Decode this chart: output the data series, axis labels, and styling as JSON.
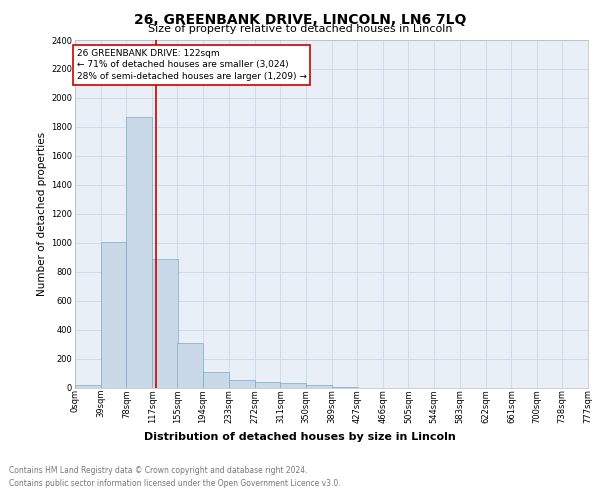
{
  "title": "26, GREENBANK DRIVE, LINCOLN, LN6 7LQ",
  "subtitle": "Size of property relative to detached houses in Lincoln",
  "xlabel": "Distribution of detached houses by size in Lincoln",
  "ylabel": "Number of detached properties",
  "footer_line1": "Contains HM Land Registry data © Crown copyright and database right 2024.",
  "footer_line2": "Contains public sector information licensed under the Open Government Licence v3.0.",
  "bin_labels": [
    "0sqm",
    "39sqm",
    "78sqm",
    "117sqm",
    "155sqm",
    "194sqm",
    "233sqm",
    "272sqm",
    "311sqm",
    "350sqm",
    "389sqm",
    "427sqm",
    "466sqm",
    "505sqm",
    "544sqm",
    "583sqm",
    "622sqm",
    "661sqm",
    "700sqm",
    "738sqm",
    "777sqm"
  ],
  "bin_edges": [
    0,
    39,
    78,
    117,
    155,
    194,
    233,
    272,
    311,
    350,
    389,
    427,
    466,
    505,
    544,
    583,
    622,
    661,
    700,
    738,
    777
  ],
  "bar_heights": [
    20,
    1005,
    1870,
    890,
    305,
    105,
    50,
    40,
    30,
    15,
    5,
    0,
    0,
    0,
    0,
    0,
    0,
    0,
    0,
    0
  ],
  "bar_color": "#c9d9e8",
  "bar_edge_color": "#7aaac8",
  "property_size": 122,
  "property_line_color": "#cc0000",
  "annotation_line1": "26 GREENBANK DRIVE: 122sqm",
  "annotation_line2": "← 71% of detached houses are smaller (3,024)",
  "annotation_line3": "28% of semi-detached houses are larger (1,209) →",
  "annotation_box_color": "#cc0000",
  "ylim_max": 2400,
  "yticks": [
    0,
    200,
    400,
    600,
    800,
    1000,
    1200,
    1400,
    1600,
    1800,
    2000,
    2200,
    2400
  ],
  "grid_color": "#c8d8e8",
  "background_color": "#e8eff7",
  "title_fontsize": 10,
  "subtitle_fontsize": 8,
  "ylabel_fontsize": 7.5,
  "xlabel_fontsize": 8,
  "tick_fontsize": 6,
  "annot_fontsize": 6.5,
  "footer_fontsize": 5.5
}
